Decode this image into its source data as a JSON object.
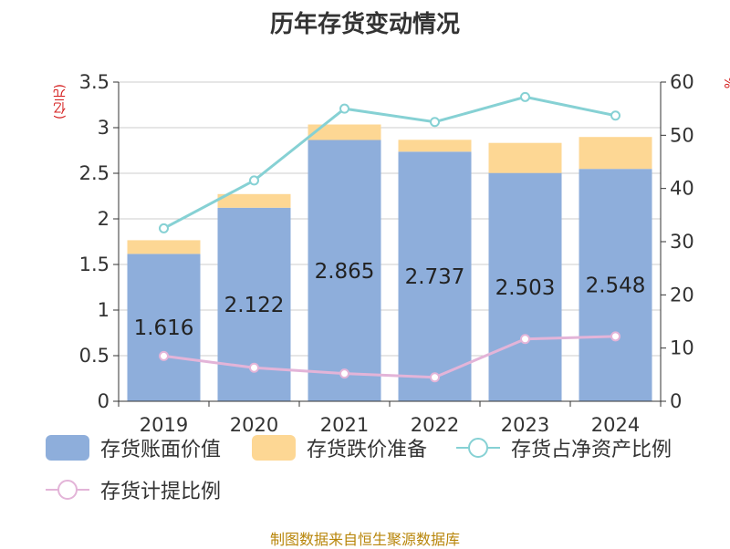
{
  "title": "历年存货变动情况",
  "y_left_unit": "(亿元)",
  "y_right_unit": "%",
  "source": "制图数据来自恒生聚源数据库",
  "legend": [
    {
      "label": "存货账面价值",
      "kind": "bar",
      "color": "#8eaedb"
    },
    {
      "label": "存货跌价准备",
      "kind": "bar",
      "color": "#fdd794"
    },
    {
      "label": "存货占净资产比例",
      "kind": "line",
      "color": "#86d1d4"
    },
    {
      "label": "存货计提比例",
      "kind": "line",
      "color": "#e3b4d8"
    }
  ],
  "chart_data": {
    "type": "bar",
    "categories": [
      "2019",
      "2020",
      "2021",
      "2022",
      "2023",
      "2024"
    ],
    "y_left": {
      "ylim": [
        0,
        3.5
      ],
      "ticks": [
        "0",
        "0.5",
        "1",
        "1.5",
        "2",
        "2.5",
        "3",
        "3.5"
      ]
    },
    "y_right": {
      "ylim": [
        0,
        60
      ],
      "ticks": [
        "0",
        "10",
        "20",
        "30",
        "40",
        "50",
        "60"
      ]
    },
    "series": [
      {
        "name": "存货账面价值",
        "type": "bar",
        "stack": "a",
        "axis": "left",
        "values": [
          1.616,
          2.122,
          2.865,
          2.737,
          2.503,
          2.548
        ],
        "labels": [
          "1.616",
          "2.122",
          "2.865",
          "2.737",
          "2.503",
          "2.548"
        ]
      },
      {
        "name": "存货跌价准备",
        "type": "bar",
        "stack": "a",
        "axis": "left",
        "values": [
          0.15,
          0.15,
          0.17,
          0.13,
          0.33,
          0.35
        ]
      },
      {
        "name": "存货占净资产比例",
        "type": "line",
        "axis": "right",
        "values": [
          32.5,
          41.5,
          55.0,
          52.5,
          57.2,
          53.7
        ]
      },
      {
        "name": "存货计提比例",
        "type": "line",
        "axis": "right",
        "values": [
          8.5,
          6.3,
          5.2,
          4.5,
          11.7,
          12.2
        ]
      }
    ],
    "grid": true
  }
}
